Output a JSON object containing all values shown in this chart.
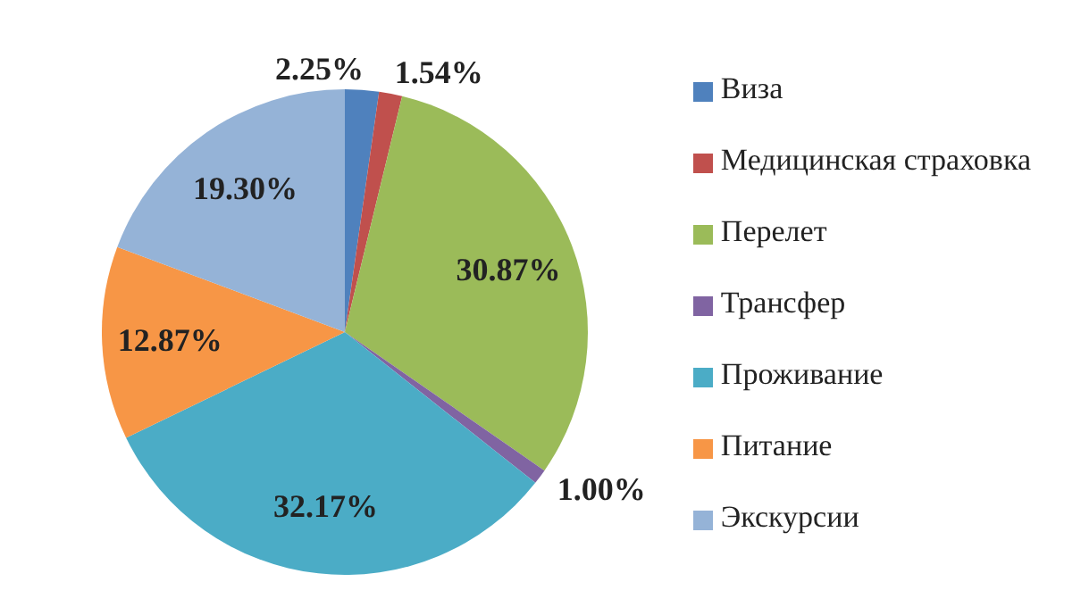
{
  "chart_data": {
    "type": "pie",
    "categories": [
      "Виза",
      "Медицинская страховка",
      "Перелет",
      "Трансфер",
      "Проживание",
      "Питание",
      "Экскурсии"
    ],
    "values": [
      2.25,
      1.54,
      30.87,
      1.0,
      32.17,
      12.87,
      19.3
    ],
    "colors": [
      "#4f81bd",
      "#c0504d",
      "#9bbb59",
      "#8064a2",
      "#4bacc6",
      "#f79646",
      "#95b3d7"
    ],
    "value_labels": [
      "2.25%",
      "1.54%",
      "30.87%",
      "1.00%",
      "32.17%",
      "12.87%",
      "19.30%"
    ],
    "legend": "right"
  }
}
